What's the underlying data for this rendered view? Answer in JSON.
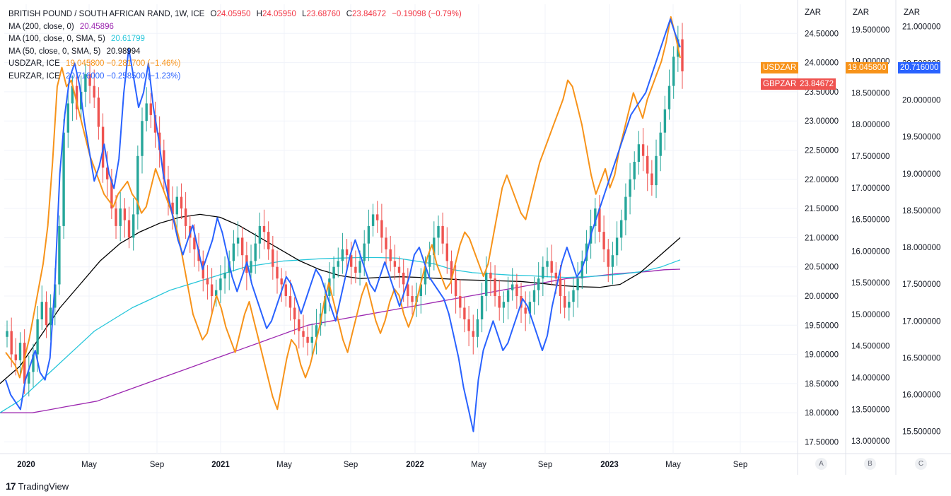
{
  "legend": {
    "symbol": "BRITISH POUND / SOUTH AFRICAN RAND, 1W, ICE",
    "open_k": "O",
    "open_v": "24.05950",
    "high_k": "H",
    "high_v": "24.05950",
    "low_k": "L",
    "low_v": "23.68760",
    "close_k": "C",
    "close_v": "23.84672",
    "change": "−0.19098 (−0.79%)",
    "ma200_label": "MA (200, close, 0)",
    "ma200_value": "20.45896",
    "ma100_label": "MA (100, close, 0, SMA, 5)",
    "ma100_value": "20.61799",
    "ma50_label": "MA (50, close, 0, SMA, 5)",
    "ma50_value": "20.98994",
    "usdzar_label": "USDZAR, ICE",
    "usdzar_value": "19.045800 −0.281700 (−1.46%)",
    "eurzar_label": "EURZAR, ICE",
    "eurzar_value": "20.716000 −0.258500 (−1.23%)"
  },
  "axes": {
    "head_a": "ZAR",
    "head_b": "ZAR",
    "head_c": "ZAR",
    "btn_a": "A",
    "btn_b": "B",
    "btn_c": "C",
    "a_ticks": [
      "24.50000",
      "24.00000",
      "23.50000",
      "23.00000",
      "22.50000",
      "22.00000",
      "21.50000",
      "21.00000",
      "20.50000",
      "20.00000",
      "19.50000",
      "19.00000",
      "18.50000",
      "18.00000",
      "17.50000"
    ],
    "b_ticks": [
      "19.500000",
      "19.000000",
      "18.500000",
      "18.000000",
      "17.500000",
      "17.000000",
      "16.500000",
      "16.000000",
      "15.500000",
      "15.000000",
      "14.500000",
      "14.000000",
      "13.500000",
      "13.000000"
    ],
    "c_ticks": [
      "21.000000",
      "20.500000",
      "20.000000",
      "19.500000",
      "19.000000",
      "18.500000",
      "18.000000",
      "17.500000",
      "17.000000",
      "16.500000",
      "16.000000",
      "15.500000"
    ],
    "time_labels": [
      "2020",
      "May",
      "Sep",
      "2021",
      "May",
      "Sep",
      "2022",
      "May",
      "Sep",
      "2023",
      "May",
      "Sep"
    ]
  },
  "tags": {
    "usdzar_name": "USDZAR",
    "usdzar_price": "19.045800",
    "eurzar_price": "20.716000",
    "gbpzar_name": "GBPZAR",
    "gbpzar_price": "23.84672"
  },
  "branding": {
    "logo_text": "TradingView"
  },
  "colors": {
    "up": "#26a69a",
    "down": "#ef5350",
    "usdzar": "#f7931a",
    "eurzar": "#2962ff",
    "ma200": "#9c27b0",
    "ma100": "#26c6da",
    "ma50": "#000000"
  },
  "chart_data": {
    "type": "candlestick",
    "title": "BRITISH POUND / SOUTH AFRICAN RAND, 1W, ICE",
    "x_range": [
      "2019-12",
      "2023-10"
    ],
    "scales": {
      "A_GBPZAR": [
        17.3,
        25.0
      ],
      "B_USDZAR": [
        12.8,
        19.9
      ],
      "C_EURZAR": [
        15.2,
        21.3
      ]
    },
    "gbpzar_close": [
      19.4,
      19.0,
      18.9,
      19.2,
      18.5,
      18.7,
      19.0,
      19.6,
      19.9,
      19.5,
      19.8,
      20.2,
      21.2,
      22.8,
      23.3,
      23.6,
      23.2,
      23.5,
      23.8,
      23.6,
      23.4,
      22.9,
      22.2,
      22.0,
      21.5,
      21.2,
      21.5,
      21.3,
      21.0,
      21.4,
      22.4,
      23.0,
      23.3,
      23.1,
      22.8,
      22.5,
      22.0,
      21.6,
      21.4,
      21.7,
      21.5,
      21.2,
      21.0,
      20.8,
      20.6,
      20.3,
      20.2,
      20.0,
      20.1,
      20.3,
      20.4,
      20.6,
      20.9,
      21.0,
      20.7,
      20.4,
      20.6,
      20.9,
      21.2,
      21.1,
      20.8,
      20.5,
      20.3,
      20.2,
      20.0,
      19.8,
      19.6,
      19.4,
      19.3,
      19.2,
      19.3,
      19.5,
      19.7,
      20.0,
      20.3,
      20.5,
      20.6,
      20.8,
      20.7,
      20.5,
      20.4,
      20.6,
      20.9,
      21.2,
      21.4,
      21.3,
      21.0,
      20.8,
      20.6,
      20.5,
      20.4,
      20.2,
      20.0,
      19.9,
      20.0,
      20.2,
      20.5,
      20.7,
      21.0,
      21.2,
      20.9,
      20.6,
      20.3,
      20.0,
      19.8,
      19.6,
      19.4,
      19.3,
      19.6,
      20.0,
      20.4,
      20.3,
      20.0,
      19.8,
      19.9,
      20.1,
      20.2,
      20.0,
      19.8,
      19.7,
      19.9,
      20.1,
      20.3,
      20.5,
      20.6,
      20.4,
      20.3,
      20.0,
      19.8,
      19.9,
      20.1,
      20.3,
      20.6,
      20.9,
      21.2,
      21.5,
      21.1,
      20.8,
      20.5,
      20.7,
      21.0,
      21.3,
      21.7,
      22.0,
      22.3,
      22.6,
      22.4,
      22.1,
      21.9,
      22.4,
      22.8,
      23.2,
      23.6,
      24.1,
      24.4,
      23.85
    ],
    "usdzar_line": [
      14.4,
      14.3,
      14.2,
      14.0,
      14.3,
      14.6,
      15.0,
      15.4,
      15.8,
      16.4,
      17.4,
      18.6,
      18.9,
      18.6,
      18.7,
      18.4,
      18.1,
      17.8,
      17.5,
      17.3,
      17.1,
      16.9,
      16.8,
      16.7,
      16.9,
      17.0,
      17.1,
      16.9,
      16.8,
      16.6,
      16.7,
      17.0,
      17.3,
      17.1,
      16.9,
      16.7,
      16.5,
      16.2,
      15.8,
      15.4,
      15.0,
      14.8,
      14.6,
      14.7,
      15.0,
      15.3,
      15.1,
      14.8,
      14.6,
      14.4,
      14.7,
      15.0,
      15.2,
      14.9,
      14.6,
      14.3,
      14.0,
      13.7,
      13.5,
      13.9,
      14.3,
      14.6,
      14.5,
      14.2,
      14.0,
      14.2,
      14.5,
      14.8,
      15.2,
      15.5,
      15.2,
      14.9,
      14.6,
      14.4,
      14.7,
      15.0,
      15.3,
      15.5,
      15.2,
      14.9,
      14.7,
      14.9,
      15.2,
      15.4,
      15.3,
      15.0,
      14.8,
      15.0,
      15.3,
      15.6,
      15.9,
      16.1,
      15.8,
      15.6,
      15.4,
      15.5,
      15.8,
      16.1,
      16.3,
      16.2,
      16.0,
      15.8,
      15.6,
      15.8,
      16.2,
      16.6,
      17.0,
      17.2,
      17.0,
      16.8,
      16.6,
      16.5,
      16.8,
      17.1,
      17.4,
      17.6,
      17.8,
      18.0,
      18.2,
      18.4,
      18.7,
      18.6,
      18.3,
      18.0,
      17.6,
      17.2,
      16.9,
      17.1,
      17.3,
      17.0,
      17.2,
      17.6,
      17.9,
      18.2,
      18.5,
      18.3,
      18.1,
      18.4,
      18.6,
      18.8,
      19.0,
      19.3,
      19.7,
      19.4,
      19.05
    ],
    "eurzar_line": [
      16.2,
      16.0,
      15.9,
      15.8,
      16.2,
      16.4,
      16.6,
      16.3,
      16.2,
      16.5,
      17.5,
      19.0,
      19.8,
      20.3,
      20.5,
      20.2,
      19.7,
      19.3,
      18.9,
      19.1,
      19.4,
      19.0,
      18.8,
      19.2,
      20.1,
      20.7,
      20.3,
      19.9,
      20.1,
      20.5,
      19.9,
      19.5,
      19.0,
      18.7,
      18.4,
      18.1,
      17.9,
      18.1,
      18.3,
      18.0,
      17.7,
      17.9,
      18.1,
      18.4,
      18.2,
      17.9,
      17.6,
      17.4,
      17.6,
      17.8,
      17.5,
      17.3,
      17.1,
      16.9,
      17.0,
      17.2,
      17.4,
      17.6,
      17.5,
      17.3,
      17.1,
      17.3,
      17.5,
      17.7,
      17.6,
      17.4,
      17.2,
      17.0,
      17.3,
      17.6,
      17.9,
      18.1,
      17.9,
      17.7,
      17.5,
      17.4,
      17.6,
      17.8,
      17.6,
      17.4,
      17.2,
      17.4,
      17.6,
      17.9,
      18.0,
      17.8,
      17.6,
      17.5,
      17.4,
      17.3,
      17.1,
      16.8,
      16.5,
      16.1,
      15.8,
      15.5,
      16.2,
      16.6,
      16.8,
      17.0,
      16.8,
      16.6,
      16.7,
      16.9,
      17.1,
      17.3,
      17.2,
      17.0,
      16.8,
      16.6,
      16.8,
      17.2,
      17.5,
      17.8,
      18.0,
      17.8,
      17.6,
      17.7,
      17.9,
      18.2,
      18.4,
      18.6,
      18.8,
      19.0,
      19.2,
      19.4,
      19.6,
      19.8,
      19.9,
      20.0,
      20.1,
      20.3,
      20.5,
      20.7,
      20.9,
      21.1,
      20.9,
      20.716
    ],
    "ma200_line": [
      18.0,
      18.0,
      18.0,
      18.05,
      18.1,
      18.15,
      18.2,
      18.3,
      18.4,
      18.5,
      18.6,
      18.7,
      18.8,
      18.9,
      19.0,
      19.1,
      19.2,
      19.3,
      19.4,
      19.5,
      19.55,
      19.6,
      19.65,
      19.7,
      19.75,
      19.8,
      19.85,
      19.9,
      19.95,
      20.0,
      20.05,
      20.1,
      20.15,
      20.2,
      20.25,
      20.3,
      20.32,
      20.35,
      20.38,
      20.4,
      20.42,
      20.45,
      20.46
    ],
    "ma100_line": [
      18.0,
      18.2,
      18.5,
      18.8,
      19.1,
      19.4,
      19.6,
      19.8,
      19.95,
      20.1,
      20.2,
      20.3,
      20.4,
      20.5,
      20.55,
      20.6,
      20.62,
      20.64,
      20.65,
      20.66,
      20.66,
      20.65,
      20.6,
      20.55,
      20.45,
      20.4,
      20.38,
      20.36,
      20.35,
      20.33,
      20.32,
      20.33,
      20.35,
      20.38,
      20.42,
      20.5,
      20.62
    ],
    "ma50_line": [
      18.5,
      18.8,
      19.3,
      19.8,
      20.2,
      20.6,
      20.9,
      21.1,
      21.25,
      21.35,
      21.4,
      21.35,
      21.2,
      21.0,
      20.8,
      20.6,
      20.45,
      20.35,
      20.3,
      20.32,
      20.33,
      20.32,
      20.3,
      20.28,
      20.27,
      20.26,
      20.25,
      20.22,
      20.18,
      20.16,
      20.15,
      20.2,
      20.4,
      20.7,
      21.0
    ]
  }
}
